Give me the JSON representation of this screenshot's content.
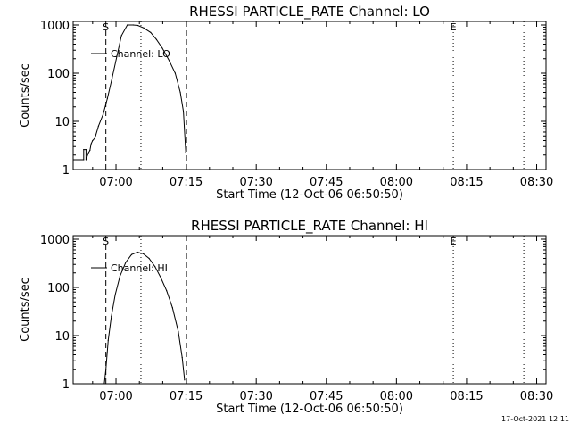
{
  "chart_data": [
    {
      "type": "line",
      "title": "RHESSI PARTICLE_RATE Channel: LO",
      "xlabel": "Start Time (12-Oct-06 06:50:50)",
      "ylabel": "Counts/sec",
      "y_scale": "log",
      "ylim": [
        1,
        1000
      ],
      "xlim": [
        "06:50:50",
        "08:32:00"
      ],
      "xticks": [
        "07:00",
        "07:15",
        "07:30",
        "07:45",
        "08:00",
        "08:15",
        "08:30"
      ],
      "yticks": [
        "1",
        "10",
        "100",
        "1000"
      ],
      "legend": {
        "label": "Channel: LO",
        "position": "top-left"
      },
      "markers": [
        {
          "label": "S",
          "time": "06:57:50",
          "style": "dashed"
        },
        {
          "label": "",
          "time": "07:05:20",
          "style": "dotted"
        },
        {
          "label": "",
          "time": "07:15:05",
          "style": "dashed"
        },
        {
          "label": "E",
          "time": "08:12:10",
          "style": "dotted"
        },
        {
          "label": "",
          "time": "08:27:15",
          "style": "dotted"
        }
      ],
      "series": [
        {
          "x": [
            "06:50:50",
            "06:53:05",
            "06:53:05",
            "06:53:35",
            "06:53:35",
            "06:54:05",
            "06:54:25",
            "06:54:40",
            "06:55:00",
            "06:55:30",
            "06:56:15",
            "06:57:15",
            "06:58:10",
            "06:59:10",
            "07:00:10",
            "07:01:10",
            "07:02:25",
            "07:03:40",
            "07:04:40",
            "07:05:55",
            "07:07:25",
            "07:08:40",
            "07:09:55",
            "07:11:25",
            "07:12:40",
            "07:13:45",
            "07:14:25",
            "07:14:55"
          ],
          "y": [
            1.6,
            1.6,
            2.6,
            2.6,
            1.6,
            2.2,
            2.5,
            3.4,
            4.0,
            4.5,
            8,
            14,
            30,
            80,
            220,
            600,
            1000,
            1000,
            980,
            870,
            700,
            500,
            330,
            180,
            100,
            40,
            16,
            2.3
          ]
        }
      ]
    },
    {
      "type": "line",
      "title": "RHESSI PARTICLE_RATE Channel: HI",
      "xlabel": "Start Time (12-Oct-06 06:50:50)",
      "ylabel": "Counts/sec",
      "y_scale": "log",
      "ylim": [
        1,
        1000
      ],
      "xlim": [
        "06:50:50",
        "08:32:00"
      ],
      "xticks": [
        "07:00",
        "07:15",
        "07:30",
        "07:45",
        "08:00",
        "08:15",
        "08:30"
      ],
      "yticks": [
        "1",
        "10",
        "100",
        "1000"
      ],
      "legend": {
        "label": "Channel: HI",
        "position": "top-left"
      },
      "markers": [
        {
          "label": "S",
          "time": "06:57:50",
          "style": "dashed"
        },
        {
          "label": "",
          "time": "07:05:20",
          "style": "dotted"
        },
        {
          "label": "",
          "time": "07:15:05",
          "style": "dashed"
        },
        {
          "label": "E",
          "time": "08:12:10",
          "style": "dotted"
        },
        {
          "label": "",
          "time": "08:27:15",
          "style": "dotted"
        }
      ],
      "series": [
        {
          "x": [
            "06:57:30",
            "06:57:50",
            "06:58:20",
            "06:59:00",
            "06:59:50",
            "07:00:50",
            "07:02:05",
            "07:03:20",
            "07:04:35",
            "07:05:50",
            "07:07:05",
            "07:08:20",
            "07:09:35",
            "07:10:50",
            "07:12:05",
            "07:13:20",
            "07:14:10",
            "07:14:40"
          ],
          "y": [
            1.0,
            2.0,
            8,
            25,
            70,
            170,
            330,
            480,
            540,
            500,
            400,
            270,
            160,
            85,
            38,
            12,
            3.5,
            1.2
          ]
        }
      ]
    }
  ],
  "footer": {
    "timestamp": "17-Oct-2021 12:11"
  }
}
